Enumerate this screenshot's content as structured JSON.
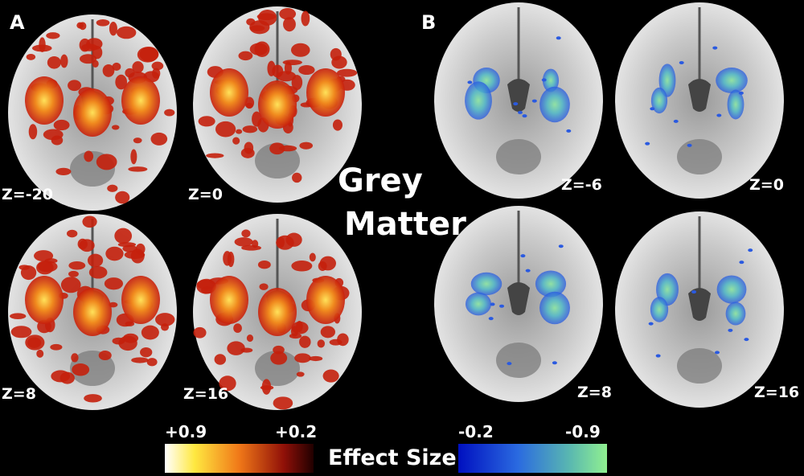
{
  "panels": [
    {
      "label": "A",
      "slices": [
        "Z=-20",
        "Z=0",
        "Z=8",
        "Z=16"
      ]
    },
    {
      "label": "B",
      "slices": [
        "Z=-6",
        "Z=0",
        "Z=8",
        "Z=16"
      ]
    }
  ],
  "center_label": [
    "Grey",
    "Matter"
  ],
  "colorbar": {
    "positive": [
      "+0.9",
      "+0.2"
    ],
    "title": "Effect Size",
    "negative": [
      "-0.2",
      "-0.9"
    ]
  }
}
